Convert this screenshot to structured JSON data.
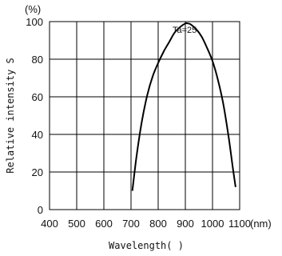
{
  "chart_data": {
    "type": "line",
    "ylabel": "Relative intensity S",
    "y_unit_label": "(%)",
    "xlabel": "Wavelength(   )",
    "x_unit_label": "(nm)",
    "annotation": "Ta=25",
    "xlim": [
      400,
      1100
    ],
    "ylim": [
      0,
      100
    ],
    "grid": true,
    "line_color": "#000000",
    "x_ticks": [
      {
        "value": 400,
        "label": "400"
      },
      {
        "value": 500,
        "label": "500"
      },
      {
        "value": 600,
        "label": "600"
      },
      {
        "value": 700,
        "label": "700"
      },
      {
        "value": 800,
        "label": "800"
      },
      {
        "value": 900,
        "label": "900"
      },
      {
        "value": 1000,
        "label": "1000"
      },
      {
        "value": 1100,
        "label": "1100"
      }
    ],
    "y_ticks": [
      {
        "value": 0,
        "label": "0"
      },
      {
        "value": 20,
        "label": "20"
      },
      {
        "value": 40,
        "label": "40"
      },
      {
        "value": 60,
        "label": "60"
      },
      {
        "value": 80,
        "label": "80"
      },
      {
        "value": 100,
        "label": "100"
      }
    ],
    "series": [
      {
        "x": [
          705,
          720,
          740,
          760,
          780,
          800,
          820,
          840,
          860,
          880,
          900,
          910,
          920,
          940,
          960,
          980,
          1000,
          1020,
          1040,
          1060,
          1075,
          1085
        ],
        "values": [
          10,
          28,
          47,
          61,
          71,
          78,
          84,
          89,
          94,
          97,
          99,
          99,
          98.5,
          96,
          92,
          86,
          79,
          69,
          56,
          38,
          22,
          12
        ]
      }
    ]
  }
}
